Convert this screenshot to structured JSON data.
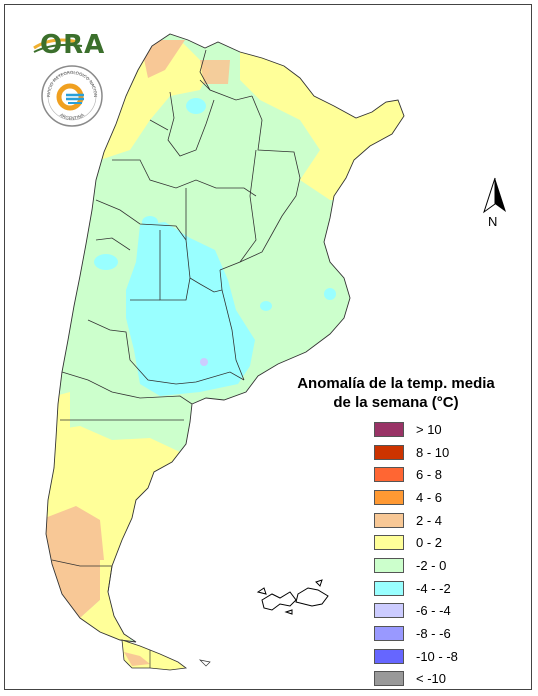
{
  "logos": {
    "ora_text": "ORA",
    "smn_ring_top": "SERVICIO METEOROLOGICO NACIONAL",
    "smn_ring_bottom": "ARGENTINA"
  },
  "north_arrow": {
    "label": "N"
  },
  "legend": {
    "title_line1": "Anomalía de la temp. media",
    "title_line2": "de la semana (°C)",
    "items": [
      {
        "label": "> 10",
        "color": "#993366"
      },
      {
        "label": "8 - 10",
        "color": "#cc3300"
      },
      {
        "label": "6 - 8",
        "color": "#ff6633"
      },
      {
        "label": "4 - 6",
        "color": "#ff9933"
      },
      {
        "label": "2 - 4",
        "color": "#f8c896"
      },
      {
        "label": "0 - 2",
        "color": "#ffff99"
      },
      {
        "label": "-2 - 0",
        "color": "#ccffcc"
      },
      {
        "label": "-4 - -2",
        "color": "#99ffff"
      },
      {
        "label": "-6 - -4",
        "color": "#ccccff"
      },
      {
        "label": "-8 - -6",
        "color": "#9999ff"
      },
      {
        "label": "-10 - -8",
        "color": "#6666ff"
      },
      {
        "label": "< -10",
        "color": "#999999"
      }
    ]
  }
}
